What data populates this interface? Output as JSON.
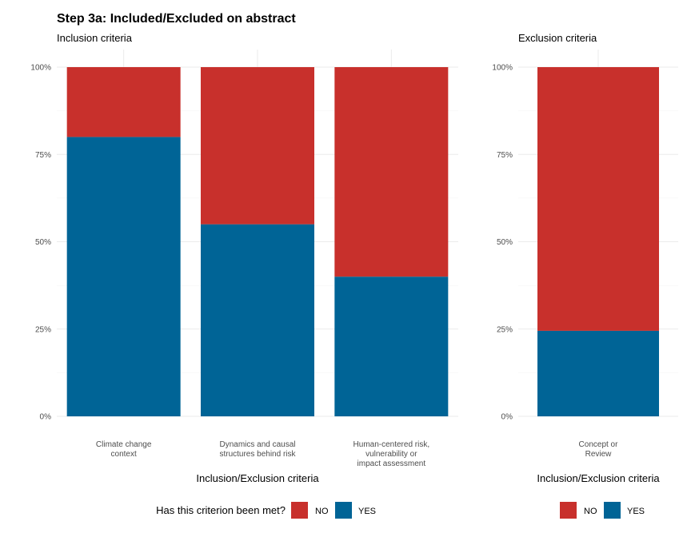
{
  "chart_title": "Step 3a: Included/Excluded on abstract",
  "colors": {
    "NO": "#c8302c",
    "YES": "#006496"
  },
  "legend": {
    "title": "Has this criterion been met?",
    "entries": [
      "NO",
      "YES"
    ]
  },
  "chart_data": [
    {
      "type": "bar",
      "stacked": true,
      "subtitle": "Inclusion criteria",
      "xlabel": "Inclusion/Exclusion criteria",
      "ylabel": "",
      "ylim": [
        0,
        1
      ],
      "y_ticks": [
        "0%",
        "25%",
        "50%",
        "75%",
        "100%"
      ],
      "categories": [
        [
          "Climate change",
          "context"
        ],
        [
          "Dynamics and causal",
          "structures behind risk"
        ],
        [
          "Human-centered risk,",
          "vulnerability or",
          "impact assessment"
        ]
      ],
      "series": [
        {
          "name": "YES",
          "values": [
            0.8,
            0.55,
            0.4
          ]
        },
        {
          "name": "NO",
          "values": [
            0.2,
            0.45,
            0.6
          ]
        }
      ],
      "legend_title": "Has this criterion been met?",
      "legend_position": "bottom"
    },
    {
      "type": "bar",
      "stacked": true,
      "subtitle": "Exclusion criteria",
      "xlabel": "Inclusion/Exclusion criteria",
      "ylabel": "",
      "ylim": [
        0,
        1
      ],
      "y_ticks": [
        "0%",
        "25%",
        "50%",
        "75%",
        "100%"
      ],
      "categories": [
        [
          "Concept or",
          "Review"
        ]
      ],
      "series": [
        {
          "name": "YES",
          "values": [
            0.245
          ]
        },
        {
          "name": "NO",
          "values": [
            0.755
          ]
        }
      ],
      "legend_title": "",
      "legend_position": "bottom"
    }
  ]
}
